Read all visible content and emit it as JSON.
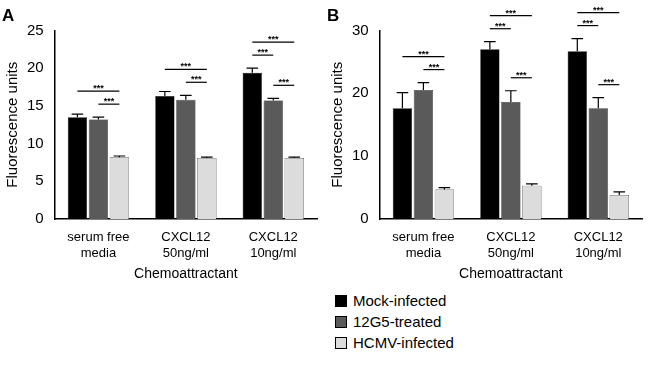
{
  "chart_data": [
    {
      "type": "bar",
      "title": "A",
      "x_label": "Chemoattractant",
      "y_label": "Fluorescence units",
      "categories": [
        [
          "serum free",
          "media"
        ],
        [
          "CXCL12",
          "50ng/ml"
        ],
        [
          "CXCL12",
          "10ng/ml"
        ]
      ],
      "series": [
        {
          "name": "Mock-infected",
          "color": "#000000",
          "values": [
            13.5,
            16.3,
            19.4
          ],
          "errors": [
            0.4,
            0.6,
            0.6
          ]
        },
        {
          "name": "12G5-treated",
          "color": "#5a5a5a",
          "values": [
            13.2,
            15.8,
            15.7
          ],
          "errors": [
            0.3,
            0.6,
            0.3
          ]
        },
        {
          "name": "HCMV-infected",
          "color": "#dcdcdc",
          "values": [
            8.2,
            8.1,
            8.1
          ],
          "errors": [
            0.15,
            0.1,
            0.1
          ]
        }
      ],
      "annotations": [
        {
          "category": 0,
          "from": 1,
          "to": 2,
          "text": "***"
        },
        {
          "category": 0,
          "from": 0,
          "to": 2,
          "text": "***"
        },
        {
          "category": 1,
          "from": 1,
          "to": 2,
          "text": "***"
        },
        {
          "category": 1,
          "from": 0,
          "to": 2,
          "text": "***"
        },
        {
          "category": 2,
          "from": 0,
          "to": 1,
          "text": "***"
        },
        {
          "category": 2,
          "from": 1,
          "to": 2,
          "text": "***"
        },
        {
          "category": 2,
          "from": 0,
          "to": 2,
          "text": "***"
        }
      ],
      "ylim": [
        0,
        25
      ],
      "yticks": [
        0,
        5,
        10,
        15,
        20,
        25
      ],
      "grid": false
    },
    {
      "type": "bar",
      "title": "B",
      "x_label": "Chemoattractant",
      "y_label": "Fluorescence units",
      "categories": [
        [
          "serum free",
          "media"
        ],
        [
          "CXCL12",
          "50ng/ml"
        ],
        [
          "CXCL12",
          "10ng/ml"
        ]
      ],
      "series": [
        {
          "name": "Mock-infected",
          "color": "#000000",
          "values": [
            17.6,
            27.0,
            26.7
          ],
          "errors": [
            2.5,
            1.2,
            2.0
          ]
        },
        {
          "name": "12G5-treated",
          "color": "#5a5a5a",
          "values": [
            20.5,
            18.6,
            17.6
          ],
          "errors": [
            1.2,
            1.8,
            1.7
          ]
        },
        {
          "name": "HCMV-infected",
          "color": "#dcdcdc",
          "values": [
            4.7,
            5.3,
            3.8
          ],
          "errors": [
            0.3,
            0.3,
            0.5
          ]
        }
      ],
      "annotations": [
        {
          "category": 0,
          "from": 1,
          "to": 2,
          "text": "***"
        },
        {
          "category": 0,
          "from": 0,
          "to": 2,
          "text": "***"
        },
        {
          "category": 1,
          "from": 0,
          "to": 1,
          "text": "***"
        },
        {
          "category": 1,
          "from": 1,
          "to": 2,
          "text": "***"
        },
        {
          "category": 1,
          "from": 0,
          "to": 2,
          "text": "***"
        },
        {
          "category": 2,
          "from": 0,
          "to": 1,
          "text": "***"
        },
        {
          "category": 2,
          "from": 1,
          "to": 2,
          "text": "***"
        },
        {
          "category": 2,
          "from": 0,
          "to": 2,
          "text": "***"
        }
      ],
      "ylim": [
        0,
        30
      ],
      "yticks": [
        0,
        10,
        20,
        30
      ],
      "grid": false,
      "legend": "bottom"
    }
  ]
}
